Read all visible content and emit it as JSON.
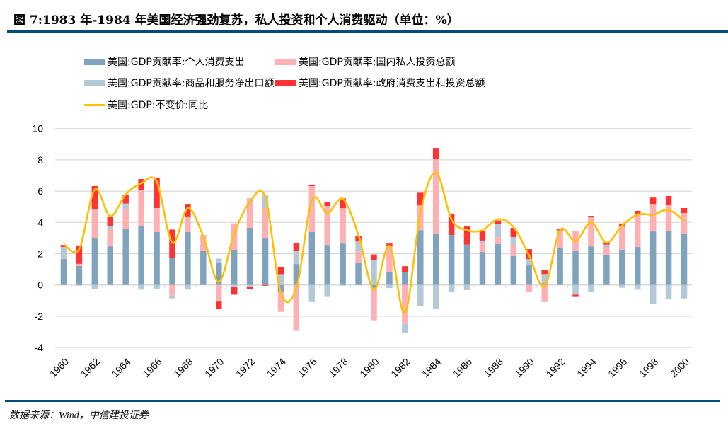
{
  "title": "图 7:1983 年-1984 年美国经济强劲复苏，私人投资和个人消费驱动（单位：%）",
  "source": "数据来源：Wind，中信建投证券",
  "colors": {
    "consumption": "#7fa3bd",
    "investment": "#ffb0b3",
    "net_exports": "#b3c9d8",
    "government": "#ff3333",
    "gdp": "#ffc000",
    "rule": "#004a7c",
    "grid": "#d9d9d9"
  },
  "chart_data": {
    "type": "bar",
    "stacked": true,
    "title": "",
    "xlabel": "",
    "ylabel": "",
    "ylim": [
      -4,
      10
    ],
    "yticks": [
      -4,
      -2,
      0,
      2,
      4,
      6,
      8,
      10
    ],
    "grid": true,
    "legend_placement": "top",
    "categories": [
      1960,
      1961,
      1962,
      1963,
      1964,
      1965,
      1966,
      1967,
      1968,
      1969,
      1970,
      1971,
      1972,
      1973,
      1974,
      1975,
      1976,
      1977,
      1978,
      1979,
      1980,
      1981,
      1982,
      1983,
      1984,
      1985,
      1986,
      1987,
      1988,
      1989,
      1990,
      1991,
      1992,
      1993,
      1994,
      1995,
      1996,
      1997,
      1998,
      1999,
      2000
    ],
    "xtick_labels": [
      "1960",
      "1962",
      "1964",
      "1966",
      "1968",
      "1970",
      "1972",
      "1974",
      "1976",
      "1978",
      "1980",
      "1982",
      "1984",
      "1986",
      "1988",
      "1990",
      "1992",
      "1994",
      "1996",
      "1998",
      "2000"
    ],
    "series": [
      {
        "name": "美国:GDP贡献率:个人消费支出",
        "kind": "bar",
        "key": "consumption",
        "values": [
          1.66,
          1.21,
          2.97,
          2.47,
          3.56,
          3.79,
          3.38,
          1.75,
          3.38,
          2.16,
          1.39,
          2.25,
          3.65,
          2.97,
          -0.45,
          1.34,
          3.38,
          2.56,
          2.65,
          1.43,
          -0.2,
          0.84,
          0.84,
          3.51,
          3.29,
          3.2,
          2.58,
          2.11,
          2.61,
          1.84,
          1.25,
          0.1,
          2.34,
          2.2,
          2.47,
          1.89,
          2.25,
          2.43,
          3.42,
          3.47,
          3.29
        ]
      },
      {
        "name": "美国:GDP贡献率:国内私人投资总额",
        "kind": "bar",
        "key": "investment",
        "values": [
          0.04,
          0.14,
          1.86,
          1.09,
          1.27,
          2.26,
          1.54,
          -0.66,
          1.0,
          0.98,
          -1.06,
          1.69,
          1.9,
          1.95,
          -1.27,
          -2.94,
          2.94,
          2.49,
          2.26,
          0.72,
          -2.06,
          1.64,
          -2.47,
          1.58,
          4.75,
          0,
          0,
          0.56,
          0.45,
          0.74,
          -0.45,
          -1.09,
          1.15,
          1.27,
          1.9,
          0.54,
          1.51,
          2.04,
          1.76,
          1.63,
          1.31
        ]
      },
      {
        "name": "美国:GDP贡献率:商品和服务净出口额",
        "kind": "bar",
        "key": "net_exports",
        "values": [
          0.73,
          -0.05,
          -0.25,
          0.21,
          0.38,
          -0.3,
          -0.27,
          -0.2,
          -0.3,
          0,
          0.3,
          -0.15,
          -0.1,
          0.81,
          0.69,
          0.86,
          -1.09,
          -0.72,
          -0.05,
          0.63,
          1.6,
          -0.2,
          -0.6,
          -1.36,
          -1.55,
          -0.42,
          -0.33,
          0.17,
          0.83,
          0.48,
          0.41,
          0.6,
          0,
          -0.62,
          -0.42,
          0.15,
          -0.18,
          -0.3,
          -1.19,
          -0.92,
          -0.86
        ]
      },
      {
        "name": "美国:GDP贡献率:政府消费支出和投资总额",
        "kind": "bar",
        "key": "government",
        "values": [
          0.13,
          1.18,
          1.49,
          0.57,
          0.53,
          0.72,
          1.95,
          1.79,
          0.81,
          0.03,
          -0.48,
          -0.47,
          -0.15,
          -0.05,
          0.45,
          0.48,
          0.09,
          0.27,
          0.63,
          0.36,
          0.35,
          0.17,
          0.36,
          0.81,
          0.72,
          1.36,
          1.16,
          0.59,
          0.23,
          0.59,
          0.63,
          0.27,
          0.08,
          -0.1,
          0.05,
          0.09,
          0.17,
          0.27,
          0.41,
          0.59,
          0.32
        ]
      },
      {
        "name": "美国:GDP:不变价:同比",
        "kind": "line",
        "key": "gdp",
        "values": [
          2.6,
          2.3,
          6.1,
          4.4,
          5.8,
          6.5,
          6.6,
          2.7,
          4.9,
          3.1,
          0.2,
          3.3,
          5.3,
          5.6,
          -0.5,
          -0.2,
          5.4,
          4.6,
          5.5,
          3.2,
          -0.3,
          2.5,
          -1.8,
          4.6,
          7.2,
          4.2,
          3.5,
          3.5,
          4.2,
          3.7,
          1.9,
          -0.1,
          3.5,
          2.8,
          4.0,
          2.7,
          3.8,
          4.5,
          4.5,
          4.8,
          4.1
        ]
      }
    ]
  }
}
